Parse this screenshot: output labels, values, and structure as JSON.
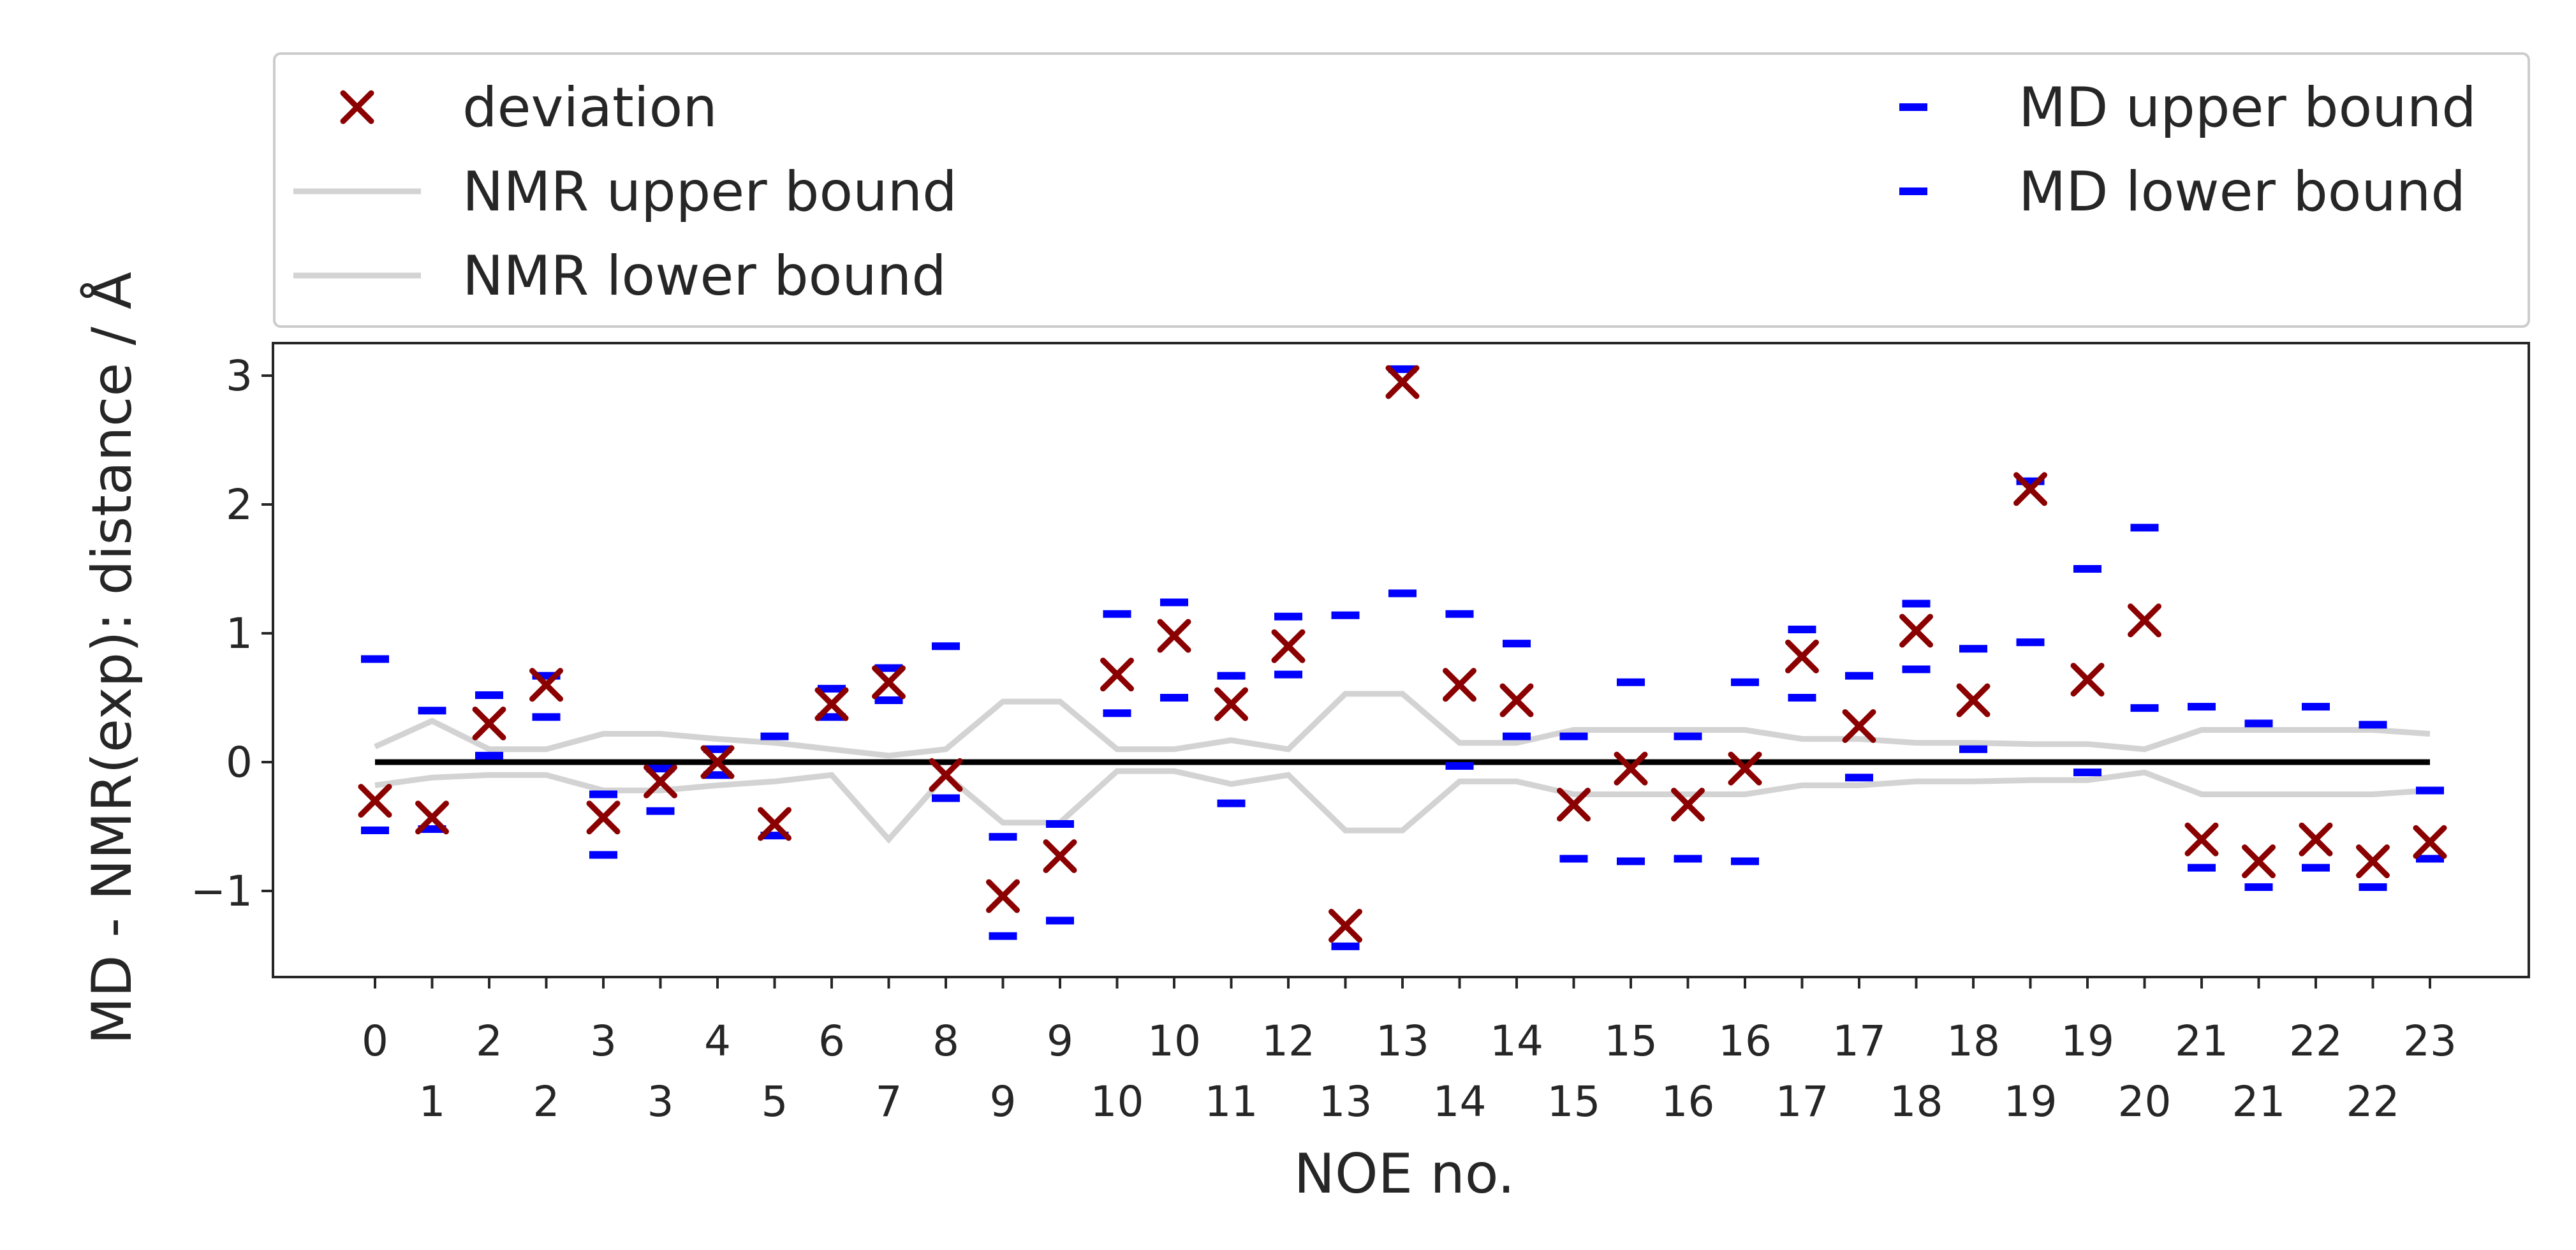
{
  "chart_data": {
    "type": "scatter",
    "xlabel": "NOE no.",
    "ylabel": "MD - NMR(exp): distance / Å",
    "ylim": [
      -1.6,
      3.25
    ],
    "y_ticks": [
      -1,
      0,
      1,
      2,
      3
    ],
    "y_tick_labels": [
      "−1",
      "0",
      "1",
      "2",
      "3"
    ],
    "x_tick_labels": [
      "0",
      "1",
      "2",
      "2",
      "3",
      "3",
      "4",
      "5",
      "6",
      "7",
      "8",
      "9",
      "9",
      "10",
      "10",
      "11",
      "12",
      "13",
      "13",
      "14",
      "14",
      "15",
      "15",
      "16",
      "16",
      "17",
      "17",
      "18",
      "18",
      "19",
      "19",
      "20",
      "21",
      "21",
      "22",
      "22",
      "23"
    ],
    "grid": false,
    "legend_position": "top (above plot, spanning width)",
    "legend": [
      "deviation",
      "NMR upper bound",
      "NMR lower bound",
      "MD upper bound",
      "MD lower bound"
    ],
    "series": [
      {
        "name": "deviation",
        "marker": "x",
        "color": "#8b0000",
        "values": [
          -0.3,
          -0.43,
          0.3,
          0.6,
          -0.43,
          -0.15,
          0.0,
          -0.48,
          0.45,
          0.62,
          -0.1,
          -1.04,
          -0.73,
          0.68,
          0.98,
          0.45,
          0.9,
          -1.27,
          2.95,
          0.6,
          0.48,
          -0.33,
          -0.05,
          -0.33,
          -0.05,
          0.82,
          0.28,
          1.02,
          0.48,
          2.12,
          0.64,
          1.1,
          -0.6,
          -0.77,
          -0.6,
          -0.77,
          -0.62
        ]
      },
      {
        "name": "NMR upper bound",
        "color": "#d3d3d3",
        "values": [
          0.12,
          0.32,
          0.1,
          0.1,
          0.22,
          0.22,
          0.18,
          0.15,
          0.1,
          0.05,
          0.1,
          0.47,
          0.47,
          0.1,
          0.1,
          0.17,
          0.1,
          0.53,
          0.53,
          0.15,
          0.15,
          0.25,
          0.25,
          0.25,
          0.25,
          0.18,
          0.18,
          0.15,
          0.15,
          0.14,
          0.14,
          0.1,
          0.25,
          0.25,
          0.25,
          0.25,
          0.22
        ]
      },
      {
        "name": "NMR lower bound",
        "color": "#d3d3d3",
        "values": [
          -0.18,
          -0.12,
          -0.1,
          -0.1,
          -0.22,
          -0.22,
          -0.18,
          -0.15,
          -0.1,
          -0.6,
          -0.1,
          -0.47,
          -0.47,
          -0.07,
          -0.07,
          -0.17,
          -0.1,
          -0.53,
          -0.53,
          -0.15,
          -0.15,
          -0.25,
          -0.25,
          -0.25,
          -0.25,
          -0.18,
          -0.18,
          -0.15,
          -0.15,
          -0.14,
          -0.14,
          -0.08,
          -0.25,
          -0.25,
          -0.25,
          -0.25,
          -0.22
        ]
      },
      {
        "name": "MD upper bound",
        "marker": "_",
        "color": "#0000ff",
        "values": [
          0.8,
          0.4,
          0.52,
          0.67,
          -0.25,
          -0.05,
          0.1,
          0.2,
          0.57,
          0.73,
          0.9,
          -0.58,
          -0.48,
          1.15,
          1.24,
          0.67,
          1.13,
          1.14,
          3.05,
          1.15,
          0.92,
          0.2,
          0.62,
          0.2,
          0.62,
          1.03,
          0.67,
          1.23,
          0.88,
          2.18,
          1.5,
          1.82,
          0.43,
          0.3,
          0.43,
          0.29,
          -0.22
        ]
      },
      {
        "name": "MD lower bound",
        "marker": "_",
        "color": "#0000ff",
        "values": [
          -0.53,
          -0.52,
          0.05,
          0.35,
          -0.72,
          -0.38,
          -0.1,
          -0.57,
          0.35,
          0.48,
          -0.28,
          -1.35,
          -1.23,
          0.38,
          0.5,
          -0.32,
          0.68,
          -1.43,
          1.31,
          -0.03,
          0.2,
          -0.75,
          -0.77,
          -0.75,
          -0.77,
          0.5,
          -0.12,
          0.72,
          0.1,
          0.93,
          -0.08,
          0.42,
          -0.82,
          -0.97,
          -0.82,
          -0.97,
          -0.75
        ]
      },
      {
        "name": "",
        "color": "#000000",
        "values": [
          0,
          0,
          0,
          0,
          0,
          0,
          0,
          0,
          0,
          0,
          0,
          0,
          0,
          0,
          0,
          0,
          0,
          0,
          0,
          0,
          0,
          0,
          0,
          0,
          0,
          0,
          0,
          0,
          0,
          0,
          0,
          0,
          0,
          0,
          0,
          0,
          0
        ]
      }
    ]
  }
}
